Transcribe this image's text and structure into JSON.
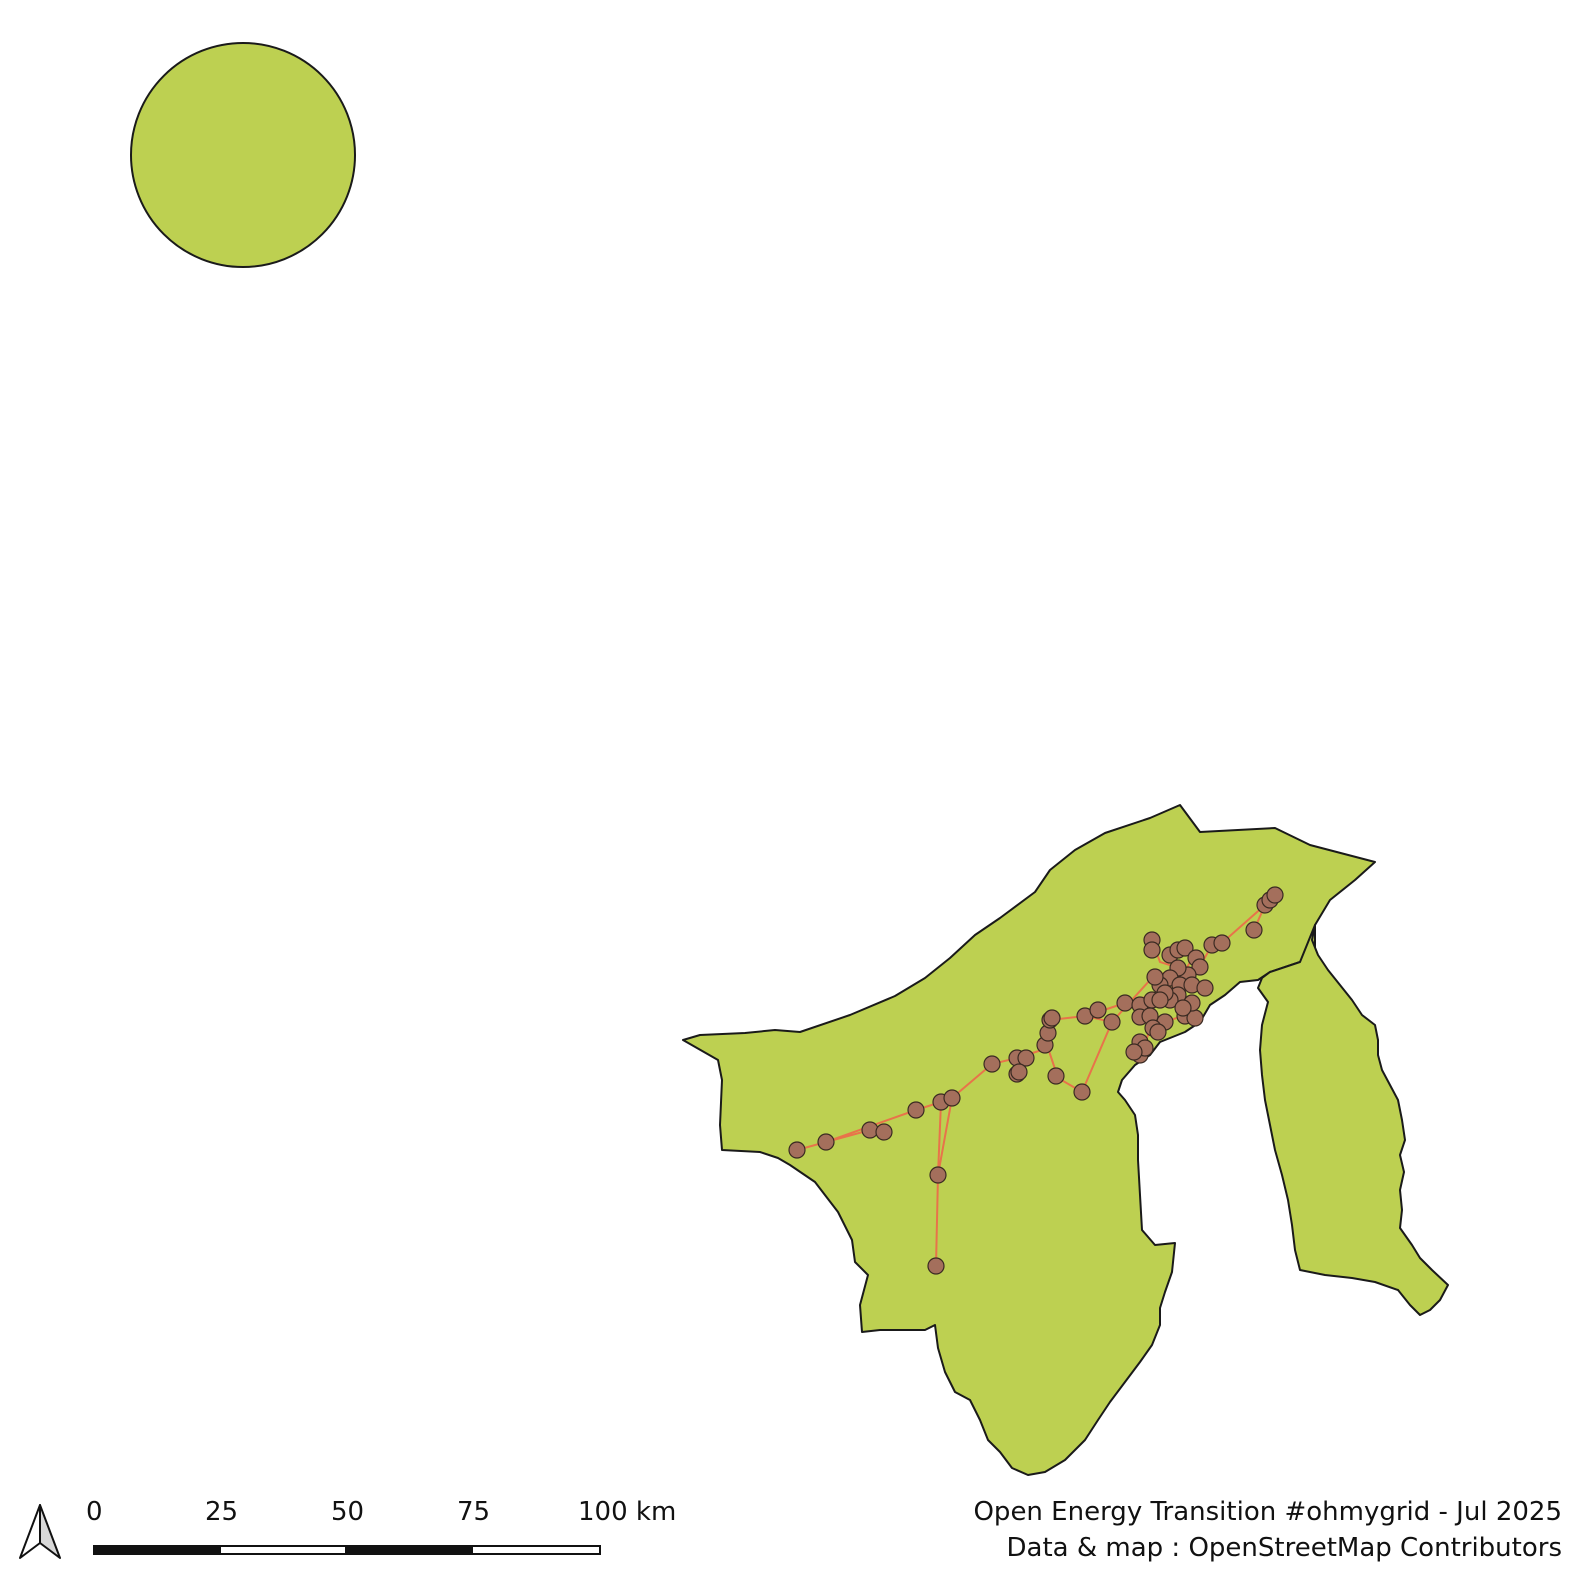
{
  "map": {
    "region_fill": "#bdd051",
    "outline_color": "#1a1a1a",
    "grid_line_color": "#e8734a",
    "substation_fill": "#a46f5c",
    "substation_stroke": "#3a2a22",
    "inset": "circle-locator",
    "layers": [
      "country-outline",
      "power-lines",
      "substations"
    ]
  },
  "north_arrow": {
    "icon": "north-arrow-icon"
  },
  "scale_bar": {
    "labels": [
      "0",
      "25",
      "50",
      "75",
      "100 km"
    ]
  },
  "credits": {
    "line1": "Open Energy Transition #ohmygrid - Jul 2025",
    "line2": "Data & map : OpenStreetMap Contributors"
  }
}
